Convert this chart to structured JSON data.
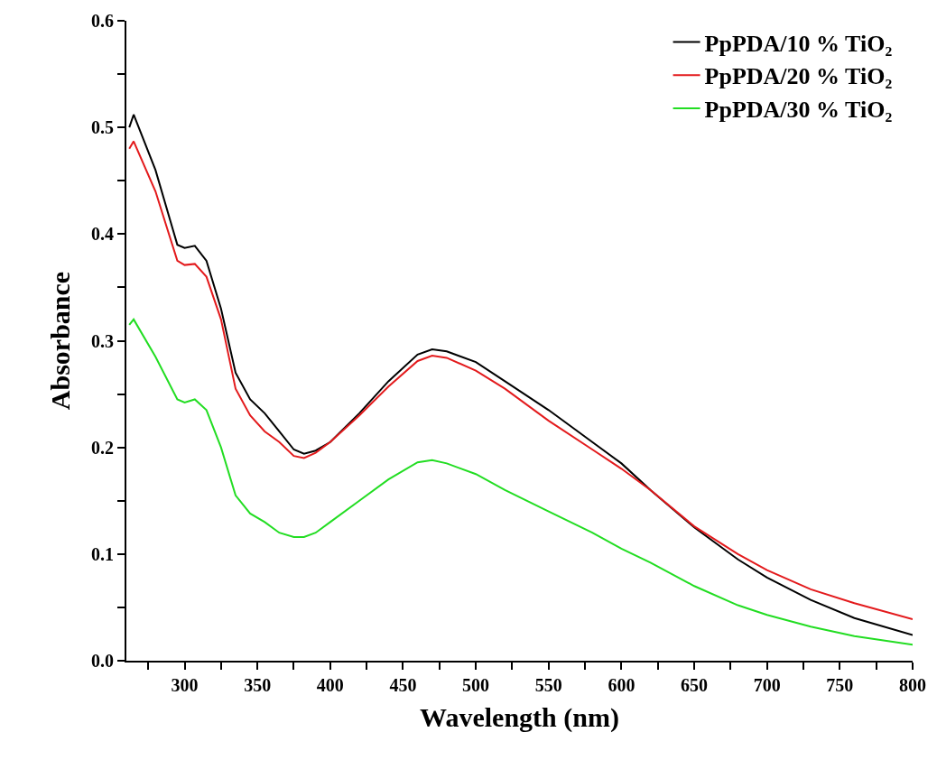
{
  "chart_data": {
    "type": "line",
    "xlabel": "Wavelength (nm)",
    "ylabel": "Absorbance",
    "xlim": [
      260,
      800
    ],
    "ylim": [
      0,
      0.6
    ],
    "xticks": [
      {
        "value": 275,
        "label": null
      },
      300,
      {
        "value": 325,
        "label": null
      },
      350,
      {
        "value": 375,
        "label": null
      },
      400,
      {
        "value": 425,
        "label": null
      },
      450,
      {
        "value": 475,
        "label": null
      },
      500,
      {
        "value": 525,
        "label": null
      },
      550,
      {
        "value": 575,
        "label": null
      },
      600,
      {
        "value": 625,
        "label": null
      },
      650,
      {
        "value": 675,
        "label": null
      },
      700,
      {
        "value": 725,
        "label": null
      },
      750,
      {
        "value": 775,
        "label": null
      },
      800
    ],
    "yticks": [
      {
        "value": 0,
        "label": "0.0"
      },
      {
        "value": 0.05,
        "label": null
      },
      {
        "value": 0.1,
        "label": "0.1"
      },
      {
        "value": 0.15,
        "label": null
      },
      {
        "value": 0.2,
        "label": "0.2"
      },
      {
        "value": 0.25,
        "label": null
      },
      {
        "value": 0.3,
        "label": "0.3"
      },
      {
        "value": 0.35,
        "label": null
      },
      {
        "value": 0.4,
        "label": "0.4"
      },
      {
        "value": 0.45,
        "label": null
      },
      {
        "value": 0.5,
        "label": "0.5"
      },
      {
        "value": 0.55,
        "label": null
      },
      {
        "value": 0.6,
        "label": "0.6"
      }
    ],
    "x": [
      262,
      265,
      280,
      295,
      300,
      307,
      315,
      325,
      335,
      345,
      355,
      365,
      375,
      382,
      390,
      400,
      420,
      440,
      460,
      470,
      480,
      500,
      520,
      550,
      580,
      600,
      620,
      650,
      680,
      700,
      730,
      760,
      800
    ],
    "legend": "top right",
    "marker": "none",
    "line_style": "solid",
    "series": [
      {
        "name": "PpPDA/10 % TiO₂",
        "color": "#000000",
        "values": [
          0.5,
          0.512,
          0.46,
          0.39,
          0.387,
          0.389,
          0.375,
          0.33,
          0.27,
          0.245,
          0.232,
          0.215,
          0.198,
          0.194,
          0.197,
          0.205,
          0.232,
          0.262,
          0.287,
          0.292,
          0.29,
          0.28,
          0.262,
          0.235,
          0.205,
          0.185,
          0.16,
          0.125,
          0.095,
          0.078,
          0.057,
          0.04,
          0.024
        ]
      },
      {
        "name": "PpPDA/20 % TiO₂",
        "color": "#e31a1c",
        "values": [
          0.48,
          0.487,
          0.44,
          0.375,
          0.371,
          0.372,
          0.36,
          0.32,
          0.255,
          0.23,
          0.215,
          0.205,
          0.192,
          0.19,
          0.195,
          0.205,
          0.23,
          0.257,
          0.281,
          0.286,
          0.284,
          0.272,
          0.255,
          0.225,
          0.198,
          0.18,
          0.16,
          0.126,
          0.1,
          0.085,
          0.067,
          0.054,
          0.039
        ]
      },
      {
        "name": "PpPDA/30 % TiO₂",
        "color": "#22dd22",
        "values": [
          0.315,
          0.32,
          0.285,
          0.245,
          0.242,
          0.245,
          0.235,
          0.2,
          0.155,
          0.138,
          0.13,
          0.12,
          0.116,
          0.116,
          0.12,
          0.13,
          0.15,
          0.17,
          0.186,
          0.188,
          0.185,
          0.175,
          0.16,
          0.14,
          0.12,
          0.105,
          0.092,
          0.07,
          0.052,
          0.043,
          0.032,
          0.023,
          0.015
        ]
      }
    ]
  }
}
